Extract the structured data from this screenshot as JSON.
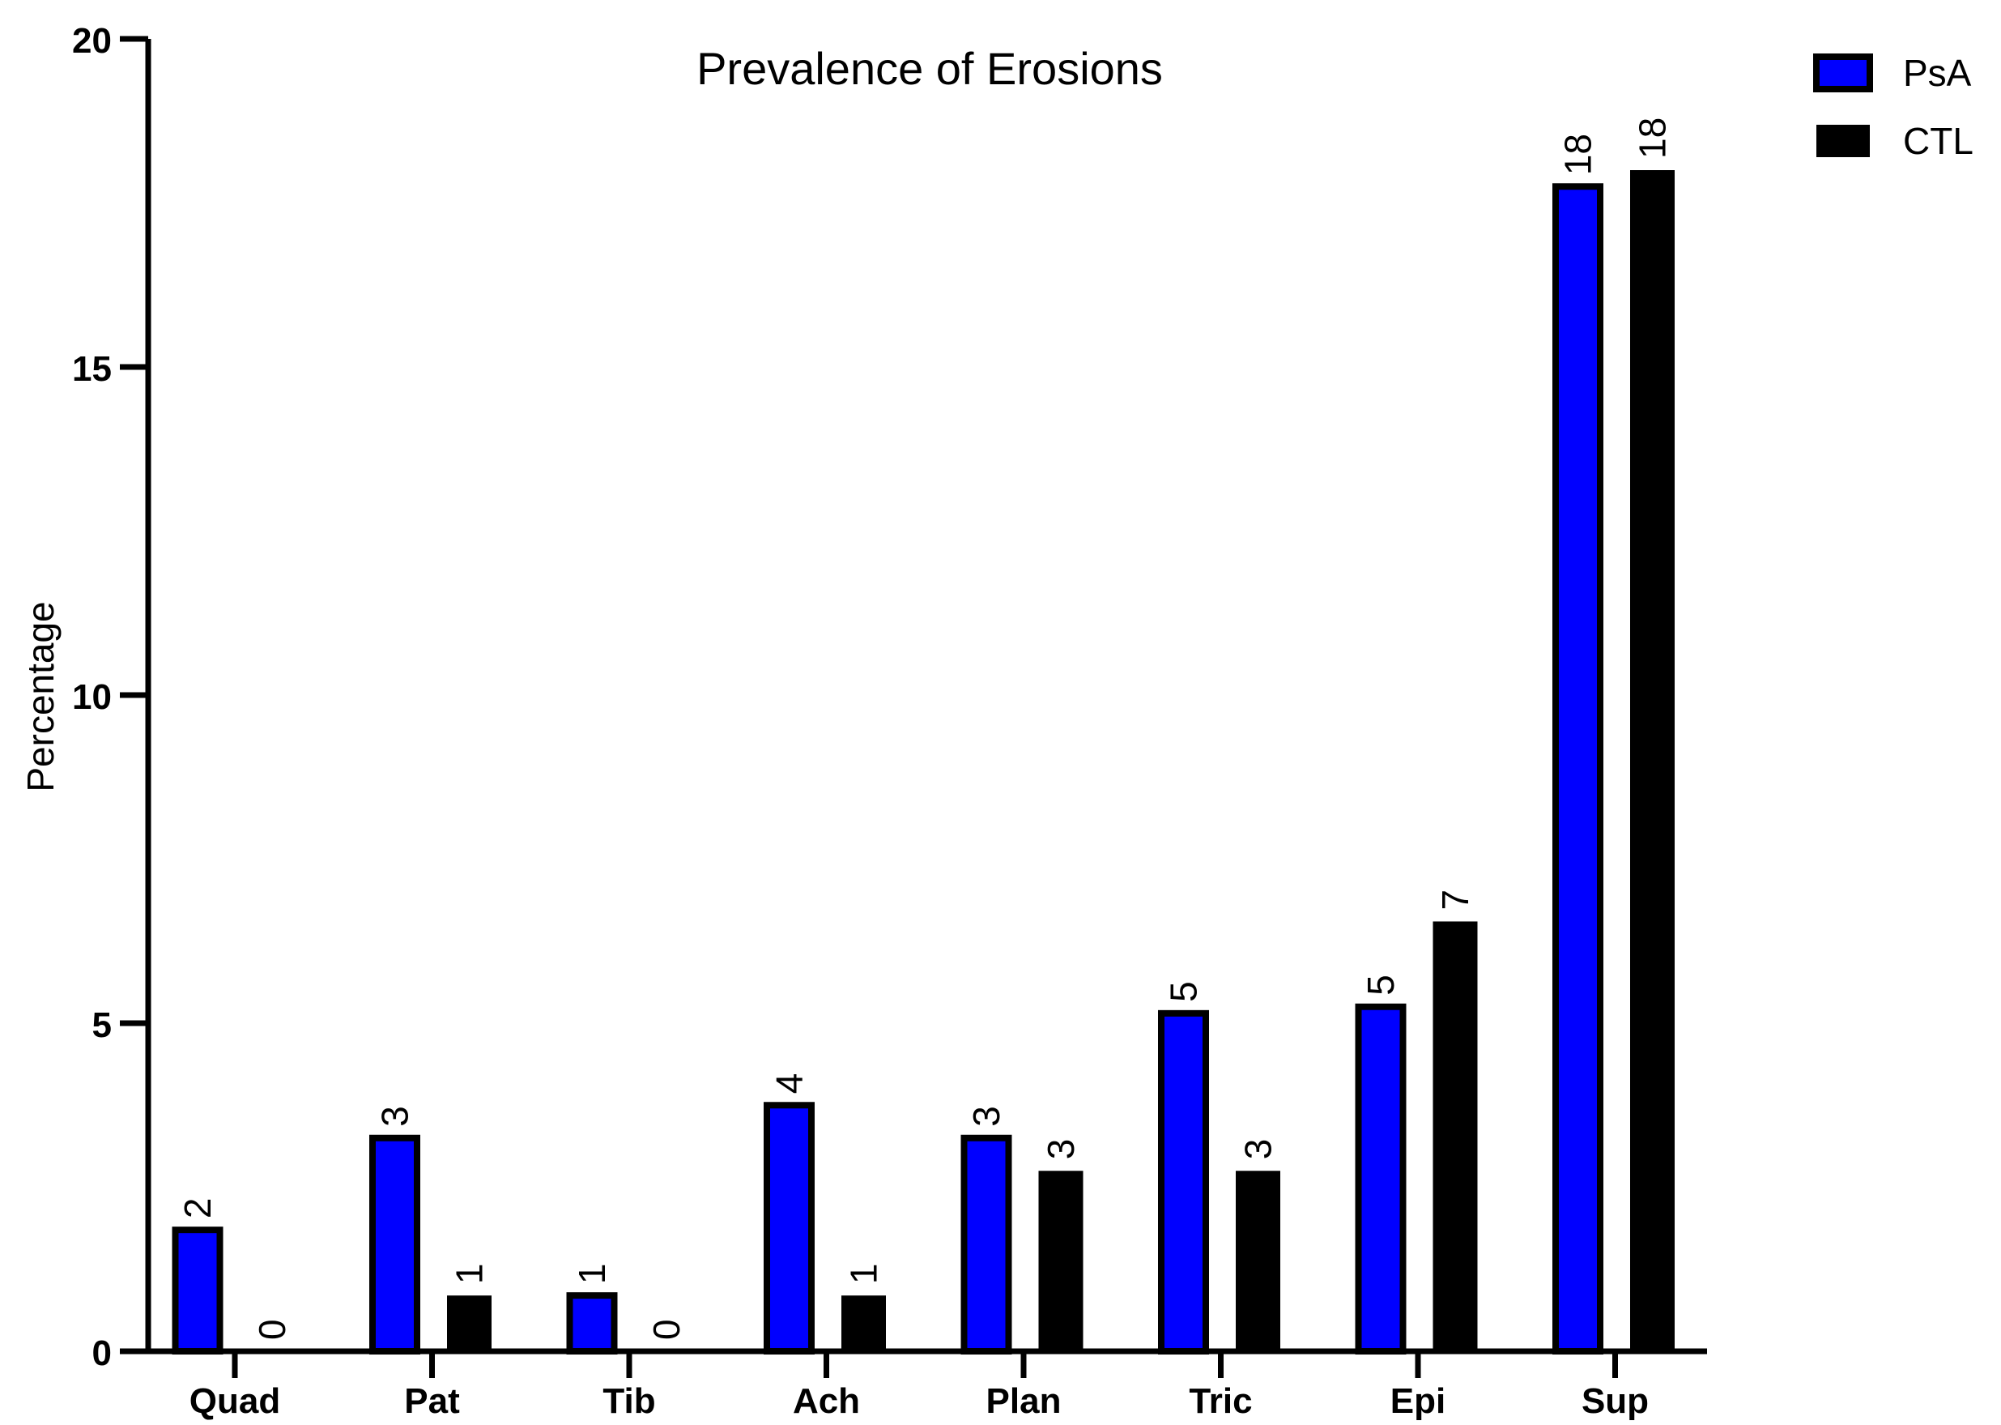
{
  "chart_data": {
    "type": "bar",
    "title": "Prevalence of Erosions",
    "xlabel": "",
    "ylabel": "Percentage",
    "ylim": [
      0,
      20
    ],
    "yticks": [
      0,
      5,
      10,
      15,
      20
    ],
    "grid": false,
    "legend_position": "top-right",
    "categories": [
      "Quad",
      "Pat",
      "Tib",
      "Ach",
      "Plan",
      "Tric",
      "Epi",
      "Sup"
    ],
    "series": [
      {
        "name": "PsA",
        "color": "#0000ff",
        "outline": "#000000",
        "values": [
          1.85,
          3.25,
          0.85,
          3.75,
          3.25,
          5.15,
          5.25,
          17.75
        ],
        "labels": [
          "2",
          "3",
          "1",
          "4",
          "3",
          "5",
          "5",
          "18"
        ]
      },
      {
        "name": "CTL",
        "color": "#000000",
        "outline": "#000000",
        "values": [
          0,
          0.85,
          0,
          0.85,
          2.75,
          2.75,
          6.55,
          18.0
        ],
        "labels": [
          "0",
          "1",
          "0",
          "1",
          "3",
          "3",
          "7",
          "18"
        ]
      }
    ]
  }
}
